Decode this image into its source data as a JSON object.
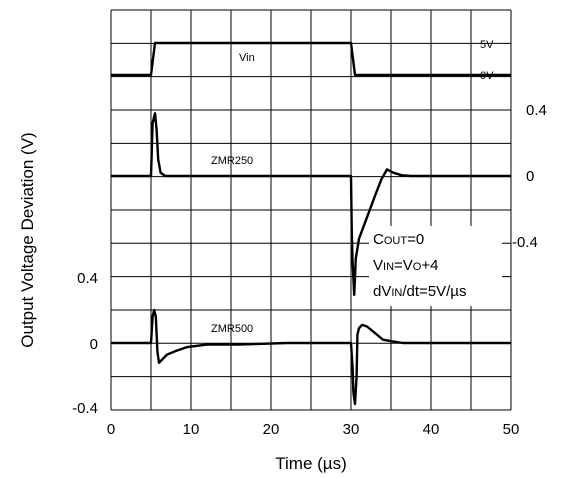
{
  "chart_data": {
    "type": "line",
    "xlabel": "Time (µs)",
    "ylabel": "Output Voltage Deviation (V)",
    "xlim": [
      0,
      50
    ],
    "x_ticks": [
      "0",
      "10",
      "20",
      "30",
      "40",
      "50"
    ],
    "grid": true,
    "legend": "none",
    "series": [
      {
        "name": "Vin",
        "unit": "V",
        "right_axis_ticks": [
          "5V",
          "0V"
        ],
        "x": [
          0,
          5.0,
          5.5,
          30.0,
          30.5,
          50
        ],
        "y": [
          0,
          0,
          5,
          5,
          0,
          0
        ]
      },
      {
        "name": "ZMR250",
        "unit": "V",
        "right_axis_ticks": [
          "0.4",
          "0",
          "-0.4"
        ],
        "x": [
          0,
          5.0,
          5.2,
          5.5,
          5.7,
          5.9,
          6.2,
          6.8,
          7.5,
          10,
          30.0,
          30.1,
          30.2,
          30.4,
          30.6,
          31.0,
          32.0,
          33.0,
          33.8,
          34.5,
          35.3,
          36.3,
          37.5,
          39,
          42,
          50
        ],
        "y": [
          0,
          0,
          0.32,
          0.38,
          0.28,
          0.1,
          0.02,
          0.0,
          0.0,
          0.0,
          0.0,
          -0.35,
          -0.52,
          -0.72,
          -0.5,
          -0.38,
          -0.25,
          -0.12,
          -0.02,
          0.04,
          0.02,
          0.005,
          0.0,
          0.0,
          0.0,
          0.0
        ]
      },
      {
        "name": "ZMR500",
        "unit": "V",
        "left_axis_ticks": [
          "0.4",
          "0",
          "-0.4"
        ],
        "x": [
          0,
          5.0,
          5.2,
          5.4,
          5.6,
          5.8,
          6.0,
          6.4,
          7.0,
          8.0,
          9.5,
          12,
          16,
          22,
          30,
          30.2,
          30.3,
          30.5,
          30.7,
          30.8,
          31.0,
          31.4,
          32.0,
          33.0,
          34.0,
          35.2,
          36.5,
          38,
          42,
          50
        ],
        "y": [
          0,
          0,
          0.16,
          0.2,
          0.16,
          -0.05,
          -0.12,
          -0.1,
          -0.07,
          -0.05,
          -0.025,
          -0.01,
          -0.01,
          0,
          0,
          -0.15,
          -0.3,
          -0.37,
          -0.2,
          0.05,
          0.09,
          0.11,
          0.1,
          0.06,
          0.02,
          0.01,
          0.0,
          0.0,
          0.0,
          0.0
        ]
      }
    ],
    "annotations": {
      "cout": "COUT=0",
      "vin": "VIN=VO+4",
      "dvdt": "dVIN/dt=5V/µs"
    }
  }
}
